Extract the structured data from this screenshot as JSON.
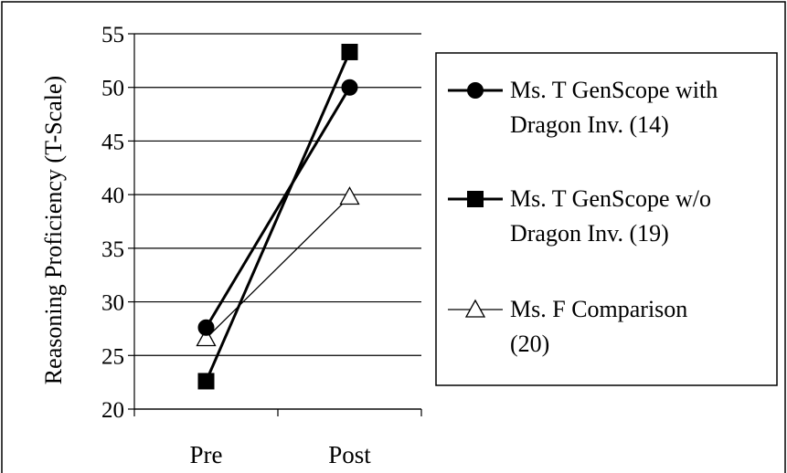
{
  "chart_data": {
    "type": "line",
    "categories": [
      "Pre",
      "Post"
    ],
    "ylabel": "Reasoning Proficiency (T-Scale)",
    "xlabel": "",
    "title": "",
    "ylim": [
      20,
      55
    ],
    "ytick_step": 5,
    "yticks": [
      "20",
      "25",
      "30",
      "35",
      "40",
      "45",
      "50",
      "55"
    ],
    "grid": "horizontal",
    "legend_position": "right",
    "series": [
      {
        "name": "Ms. T GenScope with Dragon Inv. (14)",
        "legend_lines": [
          "Ms. T GenScope with",
          "Dragon Inv. (14)"
        ],
        "marker": "circle",
        "color": "#000000",
        "values": [
          27.6,
          50.0
        ]
      },
      {
        "name": "Ms. T GenScope w/o Dragon Inv. (19)",
        "legend_lines": [
          "Ms. T GenScope w/o",
          "Dragon Inv. (19)"
        ],
        "marker": "square",
        "color": "#000000",
        "values": [
          22.6,
          53.3
        ]
      },
      {
        "name": "Ms. F Comparison (20)",
        "legend_lines": [
          "Ms. F Comparison",
          "(20)"
        ],
        "marker": "triangle",
        "color": "#000000",
        "values": [
          26.6,
          39.8
        ]
      }
    ]
  }
}
